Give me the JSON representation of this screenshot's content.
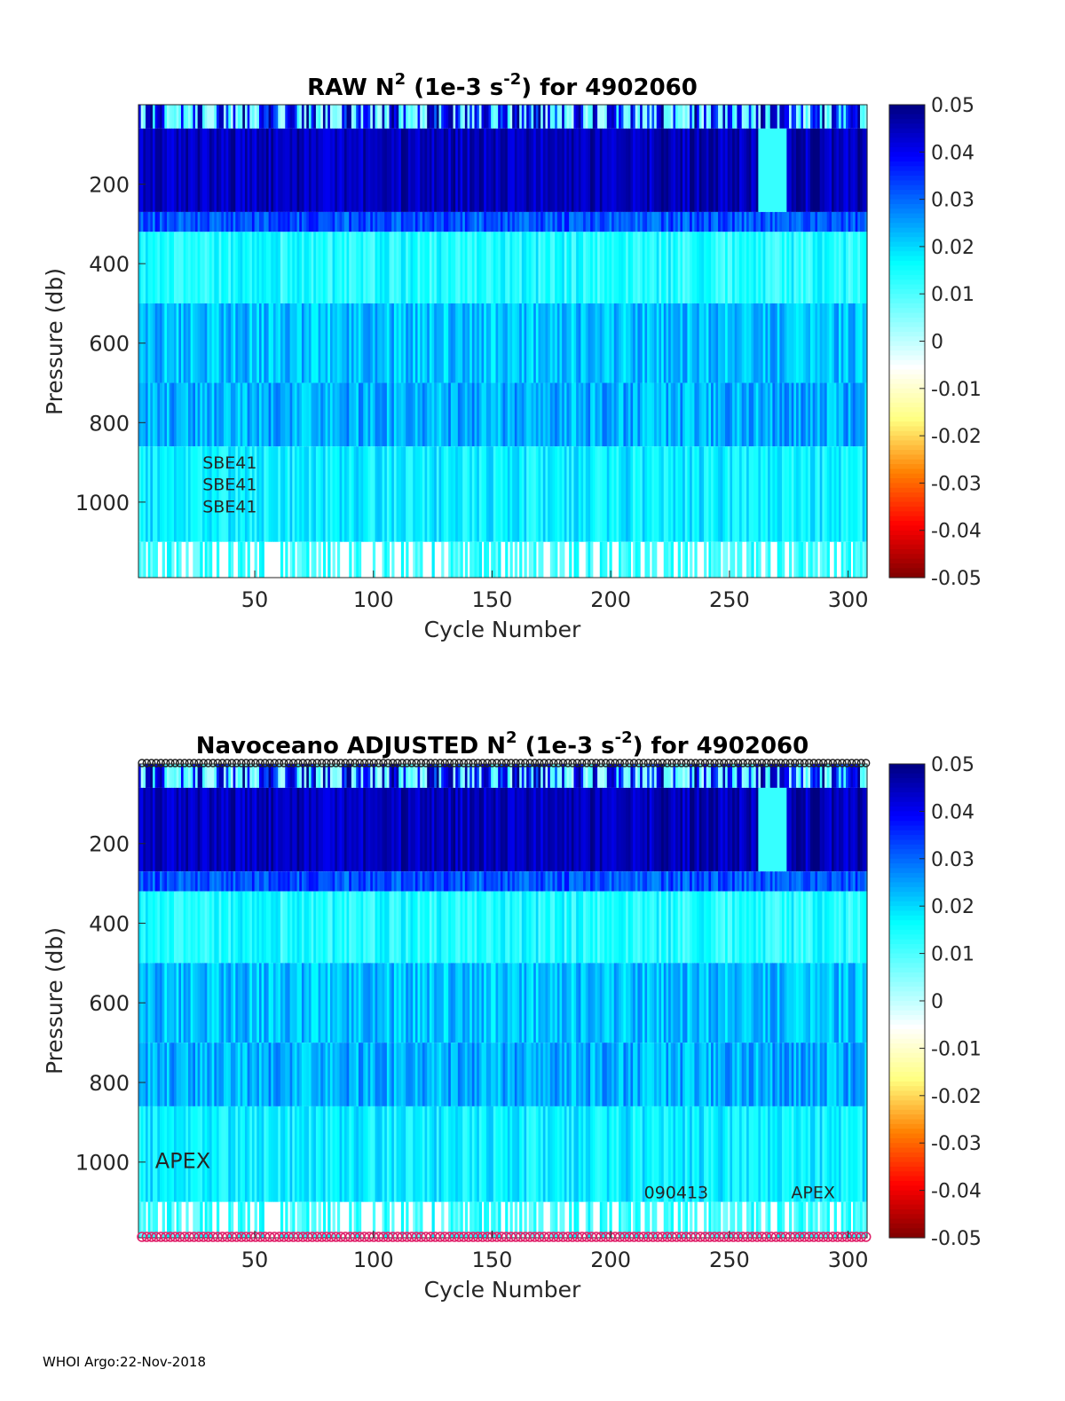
{
  "footer": "WHOI Argo:22-Nov-2018",
  "colors": {
    "colormap": [
      "#7f0000",
      "#ff0000",
      "#ff8000",
      "#ffff80",
      "#ffffff",
      "#80ffff",
      "#00ffff",
      "#0080ff",
      "#0000ff",
      "#00007f"
    ],
    "curve_top": "#222222",
    "curve_bottom": "#e0206a"
  },
  "chart_data": [
    {
      "type": "heatmap",
      "title": {
        "main": "RAW N",
        "sup1": "2",
        "mid": " (1e-3 s",
        "sup2": "-2",
        "end": ") for 4902060"
      },
      "xlabel": "Cycle Number",
      "ylabel": "Pressure (db)",
      "xlim": [
        1,
        308
      ],
      "ylim": [
        0,
        1190
      ],
      "y_reversed": true,
      "x_ticks": [
        "50",
        "100",
        "150",
        "200",
        "250",
        "300"
      ],
      "y_ticks": [
        "200",
        "400",
        "600",
        "800",
        "1000"
      ],
      "colorbar": {
        "range": [
          -0.05,
          0.05
        ],
        "ticks": [
          "0.05",
          "0.04",
          "0.03",
          "0.02",
          "0.01",
          "0",
          "-0.01",
          "-0.02",
          "-0.03",
          "-0.04",
          "-0.05"
        ]
      },
      "annotations": [
        {
          "text": "SBE41",
          "x": 28,
          "y": 900
        },
        {
          "text": "SBE41",
          "x": 28,
          "y": 955
        },
        {
          "text": "SBE41",
          "x": 28,
          "y": 1010
        }
      ],
      "profile_markers": false,
      "depth_bands": [
        {
          "p0": 0,
          "p1": 60,
          "n2": 0.005
        },
        {
          "p0": 60,
          "p1": 270,
          "n2": 0.045
        },
        {
          "p0": 270,
          "p1": 320,
          "n2": 0.032
        },
        {
          "p0": 320,
          "p1": 500,
          "n2": 0.014
        },
        {
          "p0": 500,
          "p1": 700,
          "n2": 0.022
        },
        {
          "p0": 700,
          "p1": 860,
          "n2": 0.024
        },
        {
          "p0": 860,
          "p1": 1100,
          "n2": 0.017
        },
        {
          "p0": 1100,
          "p1": 1190,
          "n2": 0.012
        }
      ]
    },
    {
      "type": "heatmap",
      "title": {
        "main": "Navoceano  ADJUSTED N",
        "sup1": "2",
        "mid": " (1e-3 s",
        "sup2": "-2",
        "end": ") for 4902060"
      },
      "xlabel": "Cycle Number",
      "ylabel": "Pressure (db)",
      "xlim": [
        1,
        308
      ],
      "ylim": [
        0,
        1190
      ],
      "y_reversed": true,
      "x_ticks": [
        "50",
        "100",
        "150",
        "200",
        "250",
        "300"
      ],
      "y_ticks": [
        "200",
        "400",
        "600",
        "800",
        "1000"
      ],
      "colorbar": {
        "range": [
          -0.05,
          0.05
        ],
        "ticks": [
          "0.05",
          "0.04",
          "0.03",
          "0.02",
          "0.01",
          "0",
          "-0.01",
          "-0.02",
          "-0.03",
          "-0.04",
          "-0.05"
        ]
      },
      "annotations": [
        {
          "text": "APEX",
          "x": 8,
          "y": 1000,
          "size": "large"
        },
        {
          "text": "090413",
          "x": 214,
          "y": 1075
        },
        {
          "text": "APEX",
          "x": 276,
          "y": 1075
        }
      ],
      "profile_markers": true,
      "depth_bands": [
        {
          "p0": 0,
          "p1": 60,
          "n2": 0.005
        },
        {
          "p0": 60,
          "p1": 270,
          "n2": 0.045
        },
        {
          "p0": 270,
          "p1": 320,
          "n2": 0.032
        },
        {
          "p0": 320,
          "p1": 500,
          "n2": 0.014
        },
        {
          "p0": 500,
          "p1": 700,
          "n2": 0.022
        },
        {
          "p0": 700,
          "p1": 860,
          "n2": 0.024
        },
        {
          "p0": 860,
          "p1": 1100,
          "n2": 0.017
        },
        {
          "p0": 1100,
          "p1": 1190,
          "n2": 0.012
        }
      ]
    }
  ]
}
